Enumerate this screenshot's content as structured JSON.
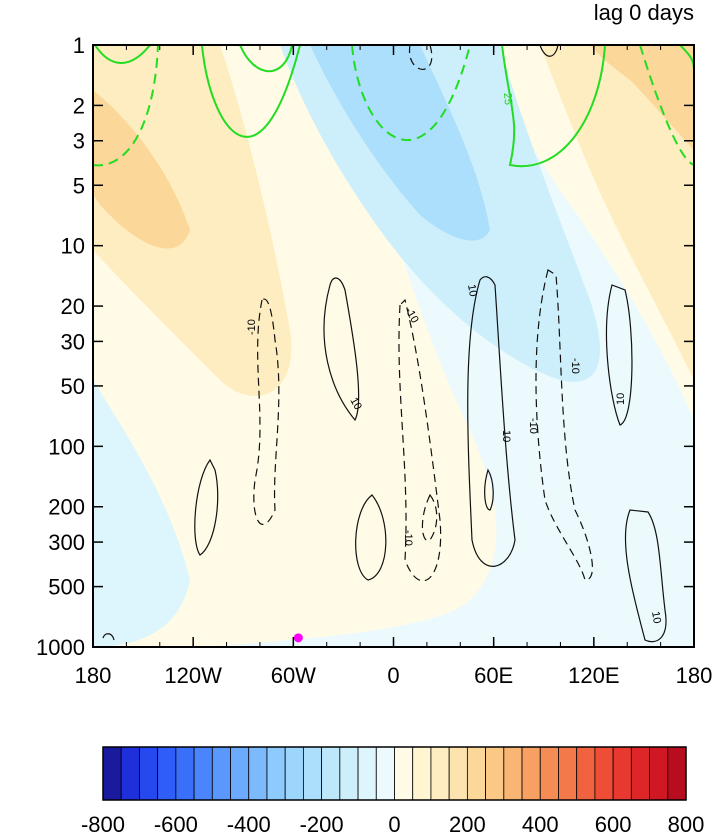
{
  "chart_data": {
    "type": "heatmap",
    "title": "lag 0 days",
    "xlabel": "",
    "ylabel": "",
    "x_ticks": [
      "180",
      "120W",
      "60W",
      "0",
      "60E",
      "120E",
      "180"
    ],
    "x_tick_values": [
      -180,
      -120,
      -60,
      0,
      60,
      120,
      180
    ],
    "y_ticks": [
      "1",
      "2",
      "3",
      "5",
      "10",
      "20",
      "30",
      "50",
      "100",
      "200",
      "300",
      "500",
      "1000"
    ],
    "y_tick_values": [
      1,
      2,
      3,
      5,
      10,
      20,
      30,
      50,
      100,
      200,
      300,
      500,
      1000
    ],
    "y_scale": "log",
    "y_inverted": true,
    "xlim": [
      -180,
      180
    ],
    "ylim": [
      1000,
      1
    ],
    "colorbar": {
      "ticks": [
        "-800",
        "-600",
        "-400",
        "-200",
        "0",
        "200",
        "400",
        "600",
        "800"
      ],
      "tick_values": [
        -800,
        -600,
        -400,
        -200,
        0,
        200,
        400,
        600,
        800
      ],
      "levels": [
        -800,
        -750,
        -700,
        -650,
        -600,
        -550,
        -500,
        -450,
        -400,
        -350,
        -300,
        -250,
        -200,
        -150,
        -100,
        -50,
        0,
        50,
        100,
        150,
        200,
        250,
        300,
        350,
        400,
        450,
        500,
        550,
        600,
        650,
        700,
        750,
        800
      ],
      "colors": [
        "#1a1a9f",
        "#1f2fd9",
        "#2548ef",
        "#2f5df7",
        "#3a70f9",
        "#4a85fb",
        "#5b98fc",
        "#6caafd",
        "#7dbafd",
        "#8dcafd",
        "#9dd6fc",
        "#acdffb",
        "#bde8fb",
        "#cdeffb",
        "#ddf5fc",
        "#ecfafd",
        "#fffbe6",
        "#fff5d0",
        "#fdedc0",
        "#fde3ad",
        "#fcd79a",
        "#fbc886",
        "#f9b573",
        "#f7a062",
        "#f58c55",
        "#f3784a",
        "#f1633f",
        "#ee4d36",
        "#e8382f",
        "#de2528",
        "#cf1823",
        "#b80d1e"
      ]
    },
    "contour_labels": [
      "25",
      "-10",
      "10"
    ],
    "marker": {
      "lon": -57,
      "pressure": 900,
      "color": "#ff00ff"
    }
  }
}
